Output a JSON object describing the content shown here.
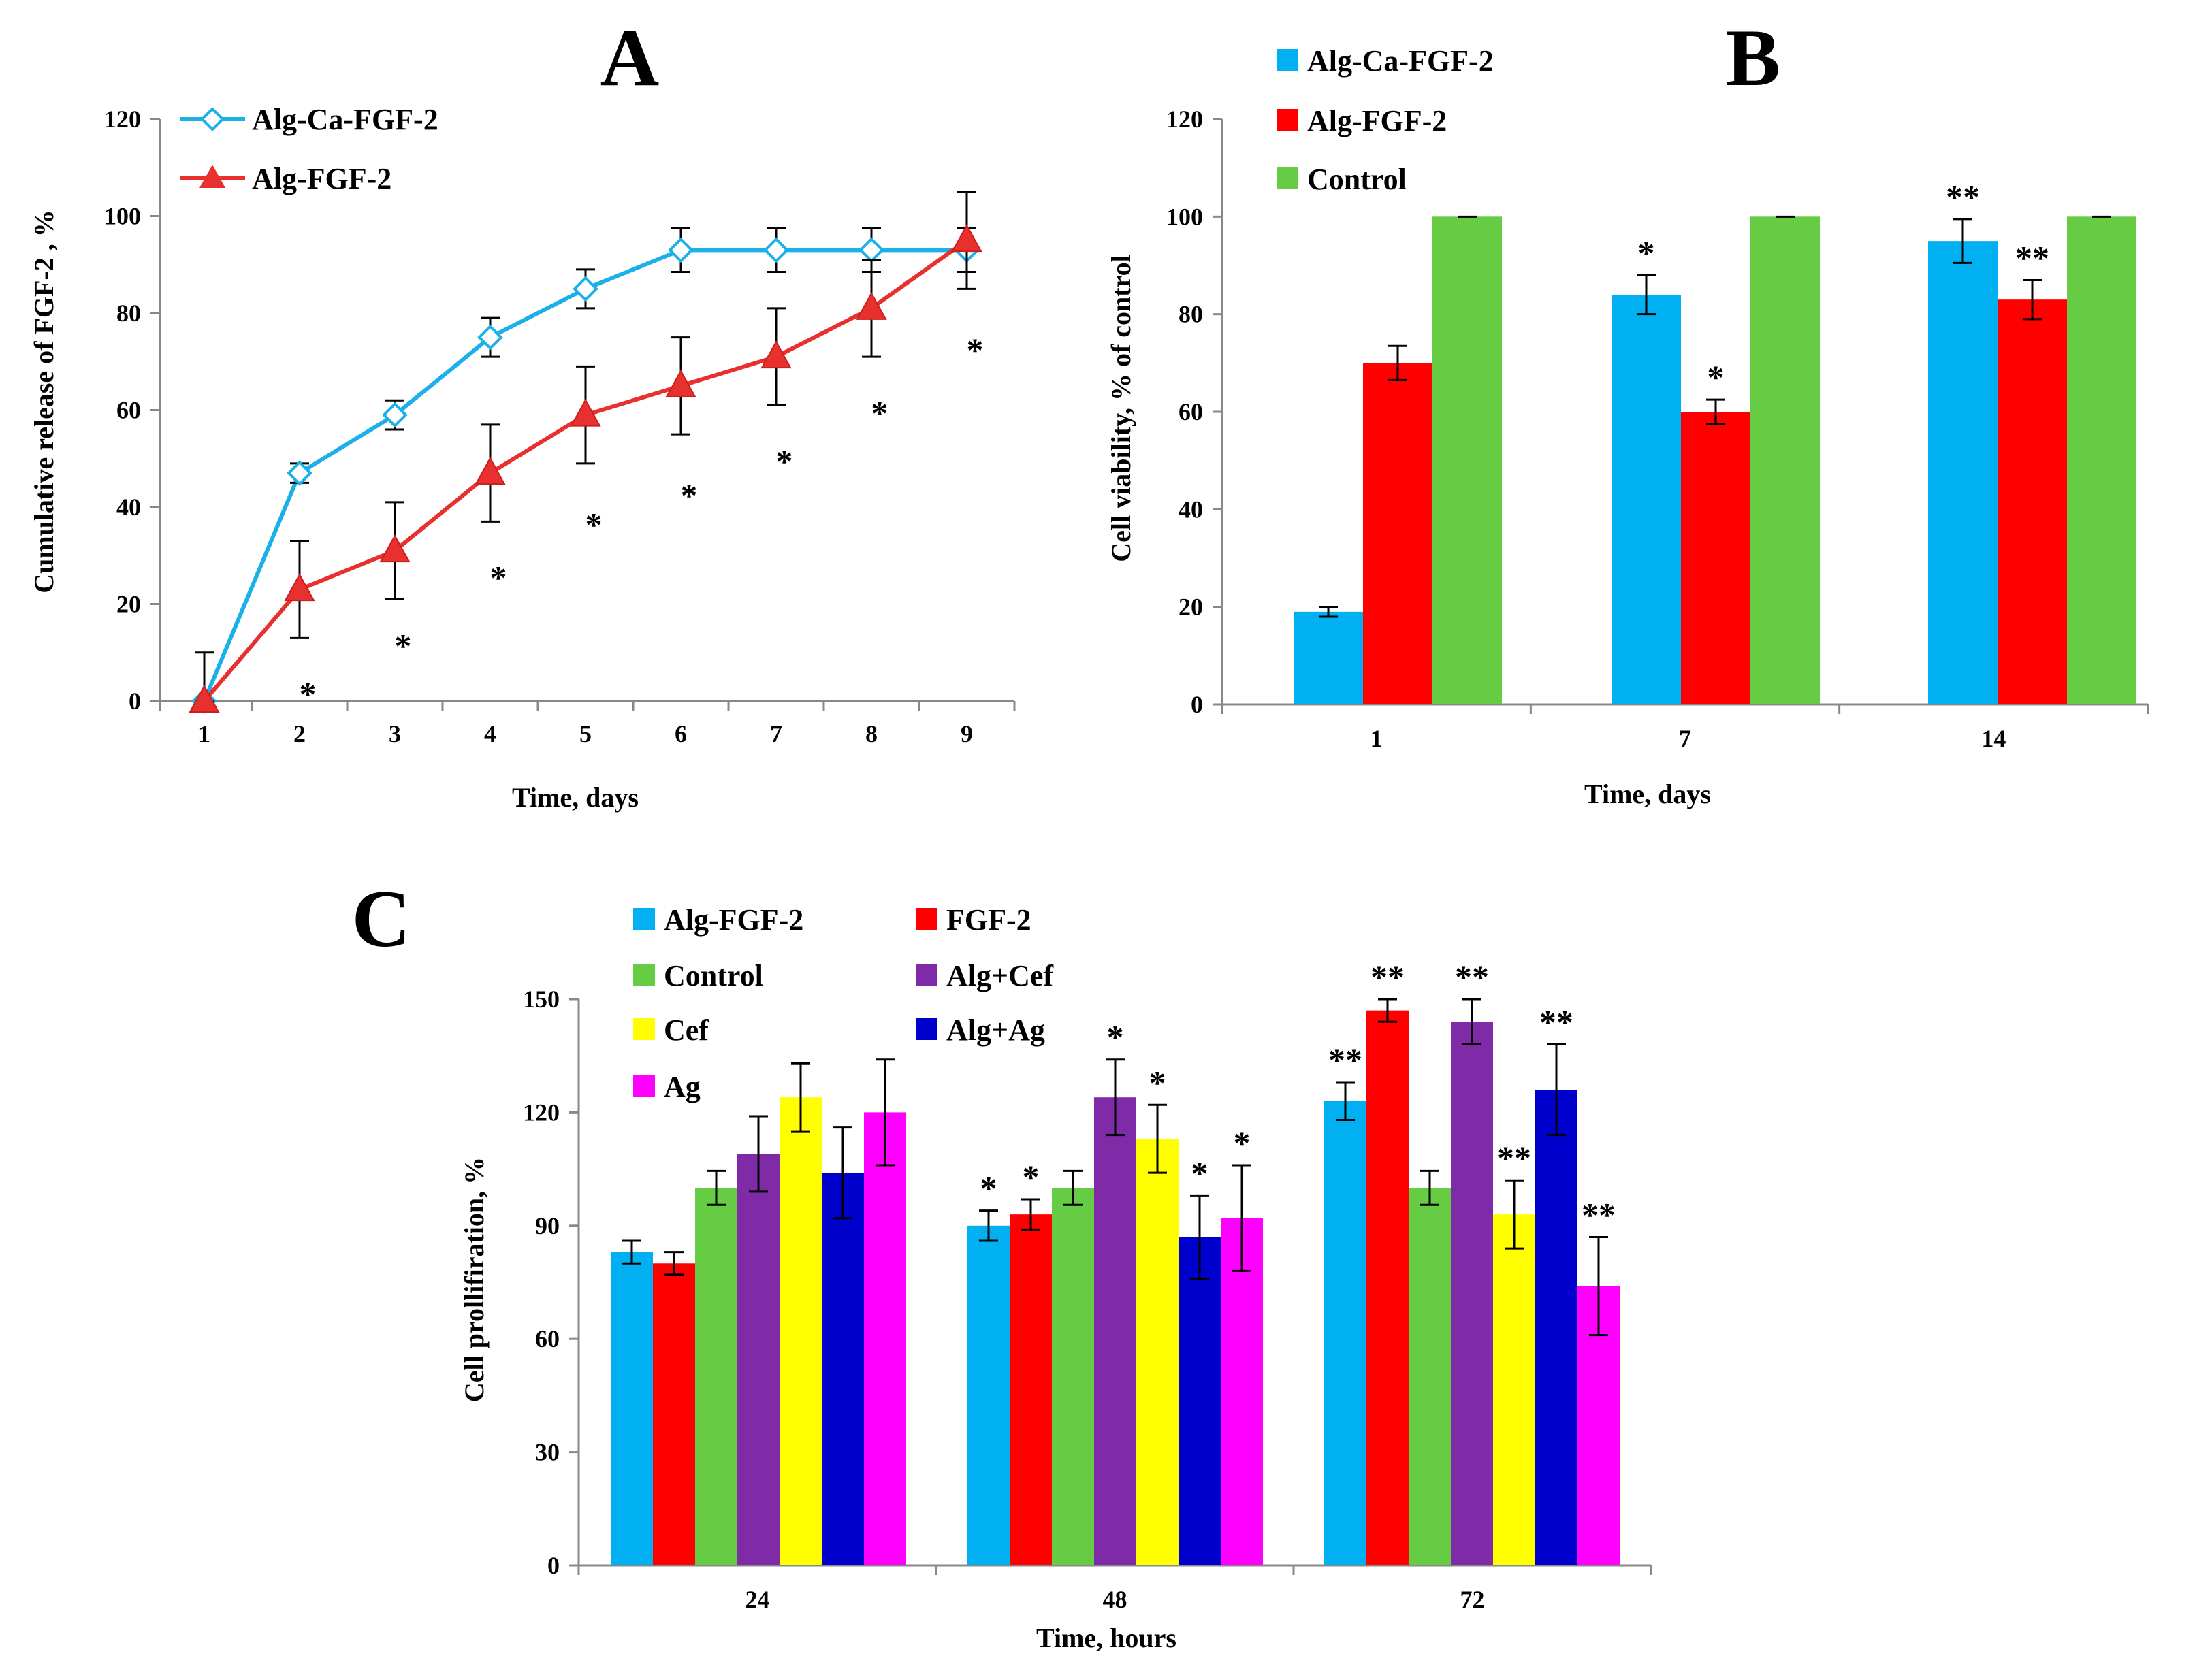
{
  "chart_data": [
    {
      "panel": "A",
      "type": "line",
      "ylabel": "Cumulative release of FGF-2 , %",
      "xlabel": "Time, days",
      "x": [
        1,
        2,
        3,
        4,
        5,
        6,
        7,
        8,
        9
      ],
      "yticks": [
        0,
        20,
        40,
        60,
        80,
        100,
        120
      ],
      "ylim": [
        0,
        120
      ],
      "series": [
        {
          "name": "Alg-Ca-FGF-2",
          "color": "#1CB0E8",
          "marker": "diamond-open",
          "values": [
            0,
            47,
            59,
            75,
            85,
            93,
            93,
            93,
            93
          ],
          "errors": [
            0,
            2,
            3,
            4,
            4,
            4.5,
            4.5,
            4.5,
            4.5
          ]
        },
        {
          "name": "Alg-FGF-2",
          "color": "#E8302E",
          "marker": "triangle",
          "values": [
            0,
            23,
            31,
            47,
            59,
            65,
            71,
            81,
            95
          ],
          "errors": [
            10,
            10,
            10,
            10,
            10,
            10,
            10,
            10,
            10
          ]
        }
      ],
      "annotations": [
        {
          "x": 2,
          "text": "*",
          "y": 3
        },
        {
          "x": 3,
          "text": "*",
          "y": 13
        },
        {
          "x": 4,
          "text": "*",
          "y": 27
        },
        {
          "x": 5,
          "text": "*",
          "y": 38
        },
        {
          "x": 6,
          "text": "*",
          "y": 44
        },
        {
          "x": 7,
          "text": "*",
          "y": 51
        },
        {
          "x": 8,
          "text": "*",
          "y": 61
        },
        {
          "x": 9,
          "text": "*",
          "y": 74
        }
      ]
    },
    {
      "panel": "B",
      "type": "bar",
      "ylabel": "Cell viability, % of control",
      "xlabel": "Time, days",
      "categories": [
        "1",
        "7",
        "14"
      ],
      "yticks": [
        0,
        20,
        40,
        60,
        80,
        100,
        120
      ],
      "ylim": [
        0,
        120
      ],
      "series": [
        {
          "name": "Alg-Ca-FGF-2",
          "color": "#00B0F0",
          "values": [
            19,
            84,
            95
          ],
          "errors": [
            1,
            4,
            4.5
          ],
          "labels": [
            "",
            "*",
            "**"
          ]
        },
        {
          "name": "Alg-FGF-2",
          "color": "#FF0000",
          "values": [
            70,
            60,
            83
          ],
          "errors": [
            3.5,
            2.5,
            4
          ],
          "labels": [
            "",
            "*",
            "**"
          ]
        },
        {
          "name": "Control",
          "color": "#66CC44",
          "values": [
            100,
            100,
            100
          ],
          "errors": [
            0,
            0,
            0
          ],
          "labels": [
            "",
            "",
            ""
          ]
        }
      ]
    },
    {
      "panel": "C",
      "type": "bar",
      "ylabel": "Cell prollifiration, %",
      "xlabel": "Time, hours",
      "categories": [
        "24",
        "48",
        "72"
      ],
      "yticks": [
        0,
        30,
        60,
        90,
        120,
        150
      ],
      "ylim": [
        0,
        150
      ],
      "series": [
        {
          "name": "Alg-FGF-2",
          "color": "#00B0F0",
          "values": [
            83,
            90,
            123
          ],
          "errors": [
            3,
            4,
            5
          ],
          "labels": [
            "",
            "*",
            "**"
          ]
        },
        {
          "name": "FGF-2",
          "color": "#FF0000",
          "values": [
            80,
            93,
            147
          ],
          "errors": [
            3,
            4,
            3
          ],
          "labels": [
            "",
            "*",
            "**"
          ]
        },
        {
          "name": "Control",
          "color": "#66CC44",
          "values": [
            100,
            100,
            100
          ],
          "errors": [
            4.5,
            4.5,
            4.5
          ],
          "labels": [
            "",
            "",
            ""
          ]
        },
        {
          "name": "Alg+Cef",
          "color": "#7F2BA8",
          "values": [
            109,
            124,
            144
          ],
          "errors": [
            10,
            10,
            6
          ],
          "labels": [
            "",
            "*",
            "**"
          ]
        },
        {
          "name": "Cef",
          "color": "#FFFF00",
          "values": [
            124,
            113,
            93
          ],
          "errors": [
            9,
            9,
            9
          ],
          "labels": [
            "",
            "*",
            "**"
          ]
        },
        {
          "name": "Alg+Ag",
          "color": "#0000CC",
          "values": [
            104,
            87,
            126
          ],
          "errors": [
            12,
            11,
            12
          ],
          "labels": [
            "",
            "*",
            "**"
          ]
        },
        {
          "name": "Ag",
          "color": "#FF00FF",
          "values": [
            120,
            92,
            74
          ],
          "errors": [
            14,
            14,
            13
          ],
          "labels": [
            "",
            "*",
            "**"
          ]
        }
      ]
    }
  ]
}
